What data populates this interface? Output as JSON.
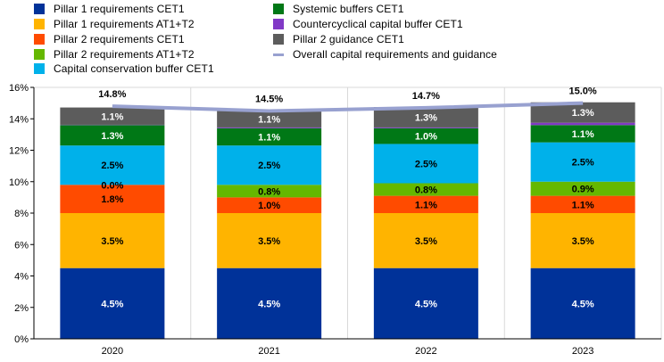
{
  "chart_data": {
    "type": "bar",
    "stacked": true,
    "categories": [
      "2020",
      "2021",
      "2022",
      "2023"
    ],
    "ylim": [
      0,
      16
    ],
    "yticks": [
      0,
      2,
      4,
      6,
      8,
      10,
      12,
      14,
      16
    ],
    "ytick_labels": [
      "0%",
      "2%",
      "4%",
      "6%",
      "8%",
      "10%",
      "12%",
      "14%",
      "16%"
    ],
    "gridlines": "vertical",
    "legend_position": "top-left",
    "series": [
      {
        "name": "Pillar 1 requirements CET1",
        "color": "#003299",
        "label_color": "#ffffff",
        "values": [
          4.5,
          4.5,
          4.5,
          4.5
        ],
        "labels": [
          "4.5%",
          "4.5%",
          "4.5%",
          "4.5%"
        ]
      },
      {
        "name": "Pillar 1 requirements AT1+T2",
        "color": "#FFB400",
        "label_color": "#000000",
        "values": [
          3.5,
          3.5,
          3.5,
          3.5
        ],
        "labels": [
          "3.5%",
          "3.5%",
          "3.5%",
          "3.5%"
        ]
      },
      {
        "name": "Pillar 2 requirements CET1",
        "color": "#FF4B00",
        "label_color": "#000000",
        "values": [
          1.8,
          1.0,
          1.1,
          1.1
        ],
        "labels": [
          "1.8%",
          "1.0%",
          "1.1%",
          "1.1%"
        ]
      },
      {
        "name": "Pillar 2 requirements AT1+T2",
        "color": "#65B800",
        "label_color": "#000000",
        "values": [
          0.0,
          0.8,
          0.8,
          0.9
        ],
        "labels": [
          "0.0%",
          "0.8%",
          "0.8%",
          "0.9%"
        ]
      },
      {
        "name": "Capital conservation buffer CET1",
        "color": "#00B1EA",
        "label_color": "#000000",
        "values": [
          2.5,
          2.5,
          2.5,
          2.5
        ],
        "labels": [
          "2.5%",
          "2.5%",
          "2.5%",
          "2.5%"
        ]
      },
      {
        "name": "Systemic buffers CET1",
        "color": "#007816",
        "label_color": "#ffffff",
        "values": [
          1.3,
          1.1,
          1.0,
          1.1
        ],
        "labels": [
          "1.3%",
          "1.1%",
          "1.0%",
          "1.1%"
        ]
      },
      {
        "name": "Countercyclical capital buffer CET1",
        "color": "#8139C6",
        "label_color": "#ffffff",
        "values": [
          0.02,
          0.05,
          0.05,
          0.15
        ],
        "labels": [
          "",
          "",
          "",
          ""
        ]
      },
      {
        "name": "Pillar 2 guidance CET1",
        "color": "#5C5C5C",
        "label_color": "#ffffff",
        "values": [
          1.1,
          1.1,
          1.3,
          1.3
        ],
        "labels": [
          "1.1%",
          "1.1%",
          "1.3%",
          "1.3%"
        ]
      }
    ],
    "line": {
      "name": "Overall capital requirements and guidance",
      "color": "#98A1D0",
      "values": [
        14.8,
        14.5,
        14.7,
        15.0
      ],
      "labels": [
        "14.8%",
        "14.5%",
        "14.7%",
        "15.0%"
      ]
    }
  },
  "legend": {
    "col1": [
      {
        "label": "Pillar 1 requirements CET1",
        "color": "#003299"
      },
      {
        "label": "Pillar 2 requirements CET1",
        "color": "#FF4B00"
      },
      {
        "label": "Pillar 2 requirements AT1+T2",
        "color": "#65B800"
      },
      {
        "label": "Capital conservation buffer CET1",
        "color": "#00B1EA"
      }
    ],
    "col1_second": {
      "label": "Pillar 1 requirements AT1+T2",
      "color": "#FFB400"
    },
    "col2": [
      {
        "label": "Systemic buffers CET1",
        "color": "#007816"
      },
      {
        "label": "Countercyclical capital buffer CET1",
        "color": "#8139C6"
      },
      {
        "label": "Pillar 2 guidance CET1",
        "color": "#5C5C5C"
      }
    ],
    "line_item": {
      "label": "Overall capital requirements and guidance",
      "color": "#98A1D0"
    }
  }
}
